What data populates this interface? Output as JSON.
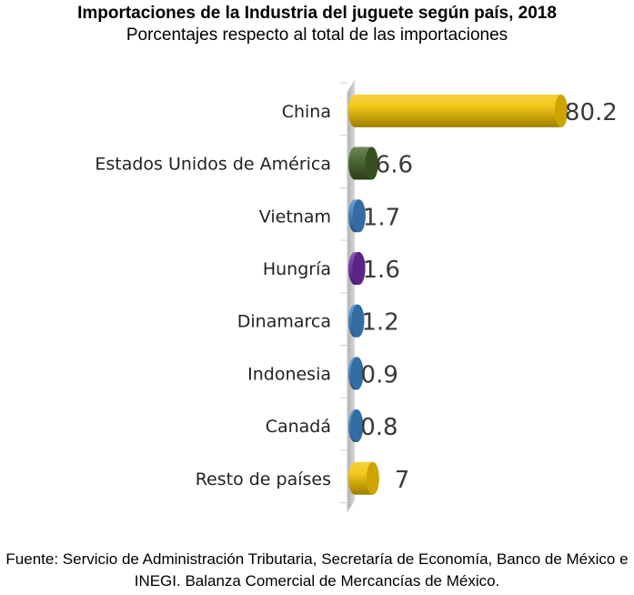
{
  "chart_data": {
    "type": "bar",
    "orientation": "horizontal",
    "title": "Importaciones de la Industria del juguete según país, 2018",
    "subtitle": "Porcentajes respecto al total de las importaciones",
    "xlabel": "",
    "ylabel": "",
    "categories": [
      "China",
      "Estados Unidos de América",
      "Vietnam",
      "Hungría",
      "Dinamarca",
      "Indonesia",
      "Canadá",
      "Resto de países"
    ],
    "values": [
      80.2,
      6.6,
      1.7,
      1.6,
      1.2,
      0.9,
      0.8,
      7
    ],
    "data_labels": [
      "80.2",
      "6.6",
      "1.7",
      "1.6",
      "1.2",
      "0.9",
      "0.8",
      "7"
    ],
    "colors": [
      "#F2C200",
      "#3E5E23",
      "#3C7FC0",
      "#6A2A9E",
      "#3C7FC0",
      "#3C7FC0",
      "#3C7FC0",
      "#F2C200"
    ],
    "xlim": [
      0,
      82
    ],
    "grid": false,
    "legend": "none",
    "style": "3d-cylinder",
    "source": "Fuente: Servicio de Administración Tributaria, Secretaría de Economía, Banco de México e INEGI. Balanza Comercial de Mercancías de México."
  }
}
